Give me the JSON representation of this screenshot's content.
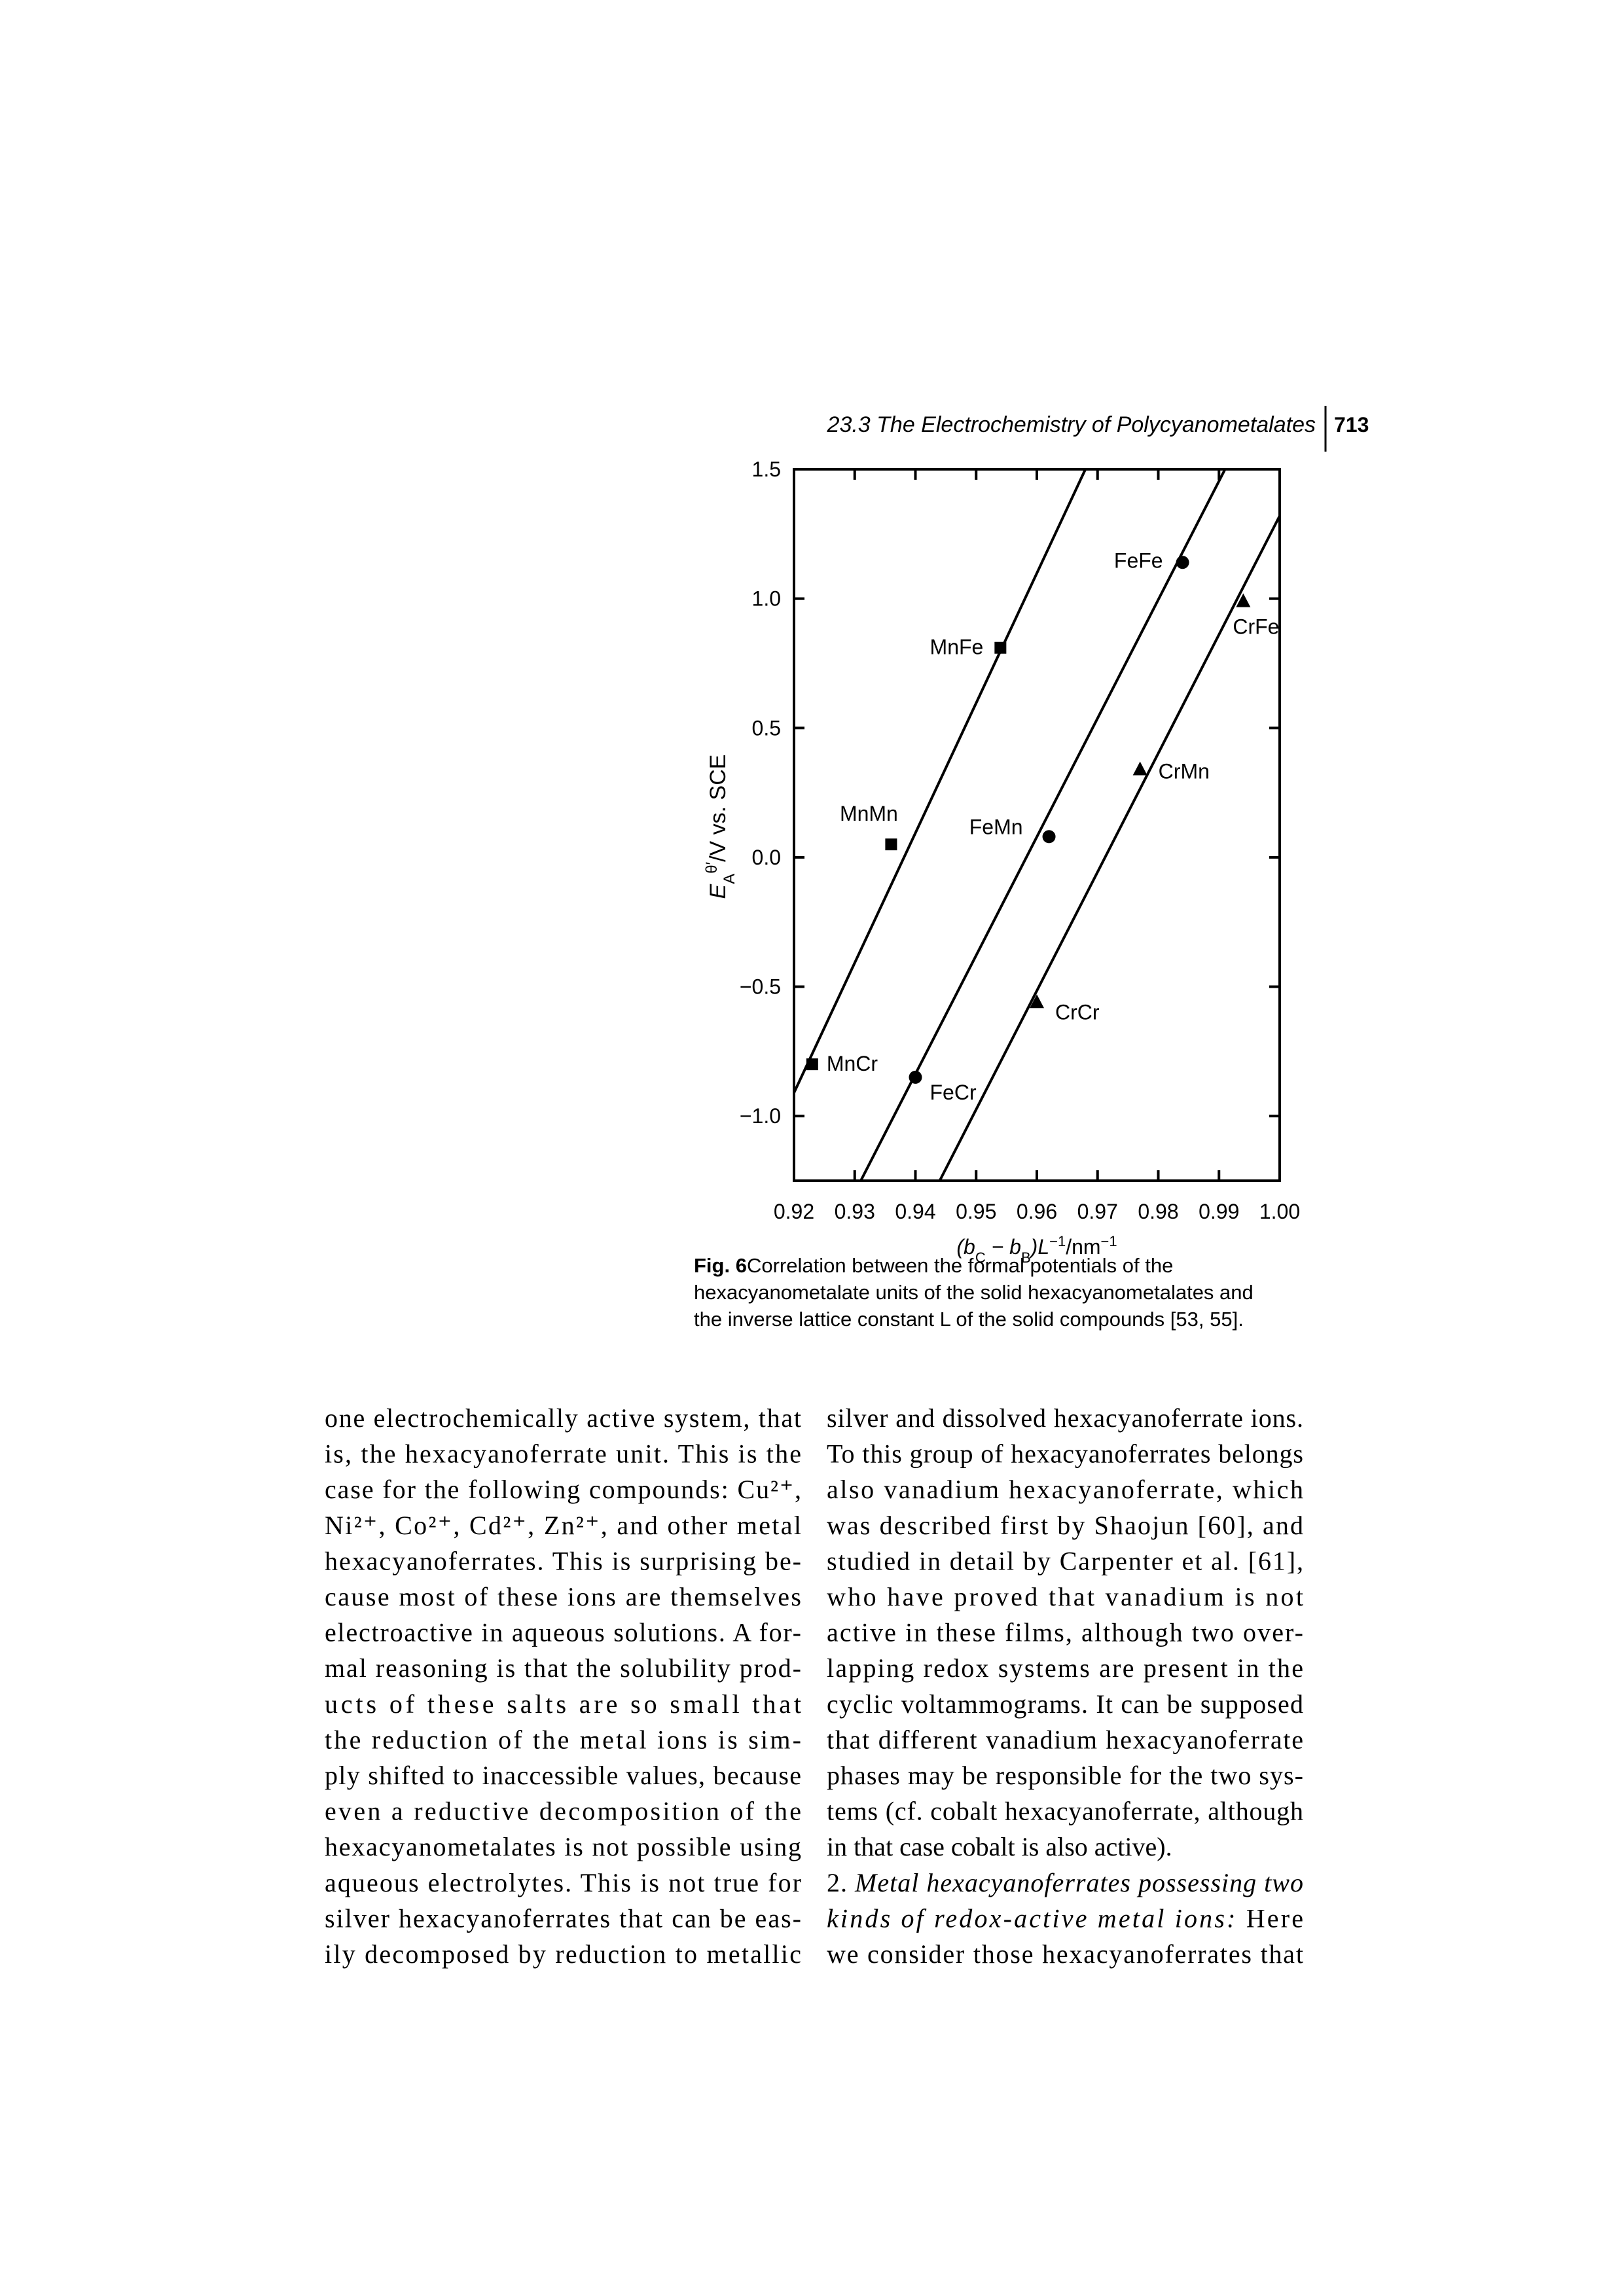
{
  "header": {
    "title": "23.3 The Electrochemistry of Polycyanometalates",
    "page": "713"
  },
  "chart_data": {
    "type": "scatter",
    "x_label": [
      "(b",
      "C",
      " − b",
      "B",
      ")L",
      "−1",
      "/nm",
      "−1"
    ],
    "y_label": [
      "E",
      "A",
      "θ′",
      "/V vs. SCE"
    ],
    "xlim": [
      0.92,
      1.0
    ],
    "ylim": [
      -1.25,
      1.5
    ],
    "xticks": [
      0.92,
      0.93,
      0.94,
      0.95,
      0.96,
      0.97,
      0.98,
      0.99,
      {
        "value": 1.0,
        "label": "1.00"
      }
    ],
    "yticks": [
      1.5,
      {
        "value": 1.0,
        "label": "1.0"
      },
      0.5,
      {
        "value": 0.0,
        "label": "0.0"
      },
      {
        "value": -0.5,
        "label": "−0.5"
      },
      {
        "value": -1.0,
        "label": "−1.0"
      }
    ],
    "color": "#000000",
    "series": [
      {
        "marker": "square",
        "labels": [
          "MnMn",
          "MnFe",
          "MnCr"
        ],
        "x": [
          0.936,
          0.954,
          0.923
        ],
        "values": [
          0.05,
          0.81,
          -0.8
        ]
      },
      {
        "marker": "circle",
        "labels": [
          "FeFe",
          "FeMn",
          "FeCr"
        ],
        "x": [
          0.984,
          0.962,
          0.94
        ],
        "values": [
          1.14,
          0.08,
          -0.85
        ]
      },
      {
        "marker": "triangle",
        "labels": [
          "CrFe",
          "CrMn",
          "CrCr"
        ],
        "x": [
          0.994,
          0.977,
          0.96
        ],
        "values": [
          0.99,
          0.34,
          -0.56
        ]
      }
    ],
    "lines": [
      {
        "x": [
          0.92,
          0.968
        ],
        "values": [
          -0.91,
          1.5
        ]
      },
      {
        "x": [
          0.931,
          0.991
        ],
        "values": [
          -1.25,
          1.5
        ]
      },
      {
        "x": [
          0.944,
          1.0
        ],
        "values": [
          -1.25,
          1.32
        ]
      }
    ]
  },
  "caption": {
    "label": "Fig. 6",
    "lines": [
      "Correlation between the formal potentials of the",
      "hexacyanometalate units of the solid hexacyanometalates and",
      "the inverse lattice constant L of the solid compounds [53, 55]."
    ]
  },
  "body": {
    "left": [
      "one electrochemically active system, that",
      "is, the hexacyanoferrate unit. This is the",
      "case for the following compounds: Cu²⁺,",
      "Ni²⁺, Co²⁺, Cd²⁺, Zn²⁺, and other metal",
      "hexacyanoferrates. This is surprising be-",
      "cause most of these ions are themselves",
      "electroactive in aqueous solutions. A for-",
      "mal reasoning is that the solubility prod-",
      "ucts of these salts are so small that",
      "the reduction of the metal ions is sim-",
      "ply shifted to inaccessible values, because",
      "even a reductive decomposition of the",
      "hexacyanometalates is not possible using",
      "aqueous electrolytes. This is not true for",
      "silver hexacyanoferrates that can be eas-",
      "ily decomposed by reduction to metallic"
    ],
    "right": [
      "silver and dissolved hexacyanoferrate ions.",
      "To this group of hexacyanoferrates belongs",
      "also vanadium hexacyanoferrate, which",
      "was described first by Shaojun [60], and",
      "studied in detail by Carpenter et al. [61],",
      "who have proved that vanadium is not",
      "active in these films, although two over-",
      "lapping redox systems are present in the",
      "cyclic voltammograms. It can be supposed",
      "that different vanadium hexacyanoferrate",
      "phases may be responsible for the two sys-",
      "tems (cf. cobalt hexacyanoferrate, although",
      "in that case cobalt is also active).",
      [
        {
          "text": "2. ",
          "italic": false
        },
        {
          "text": "Metal hexacyanoferrates possessing two",
          "italic": true
        }
      ],
      [
        {
          "text": "kinds of redox-active metal ions:",
          "italic": true
        },
        {
          "text": " Here",
          "italic": false
        }
      ],
      "we consider those hexacyanoferrates that"
    ]
  }
}
